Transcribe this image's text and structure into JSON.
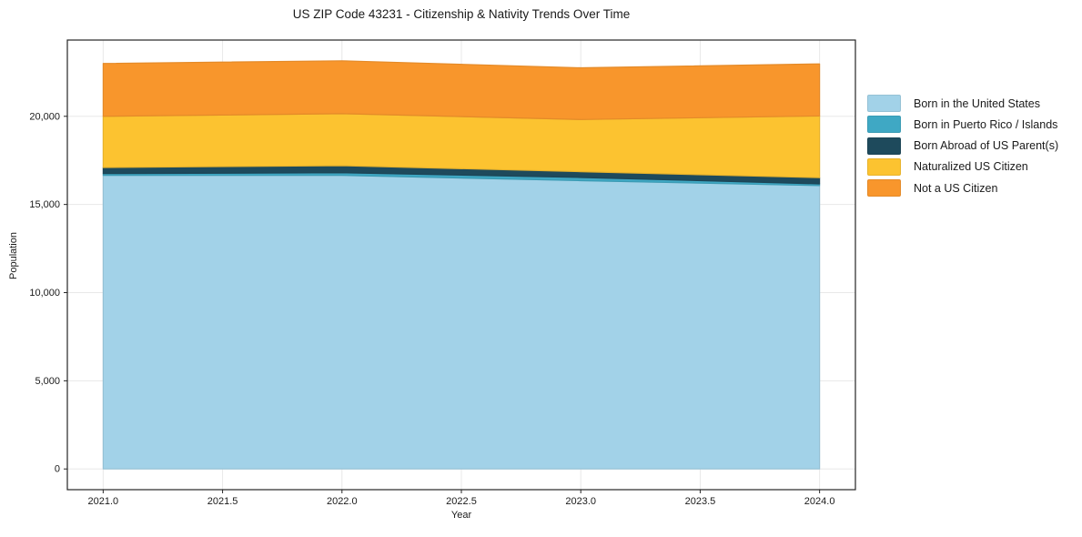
{
  "title": "US ZIP Code 43231 - Citizenship & Nativity Trends Over Time",
  "chart_data": {
    "type": "area",
    "stacked": true,
    "title": "US ZIP Code 43231 - Citizenship & Nativity Trends Over Time",
    "xlabel": "Year",
    "ylabel": "Population",
    "x": [
      2021,
      2022,
      2023,
      2024
    ],
    "series": [
      {
        "name": "Born in the United States",
        "color": "#a2d2e8",
        "values": [
          16650,
          16650,
          16350,
          16070
        ]
      },
      {
        "name": "Born in Puerto Rico / Islands",
        "color": "#3fa8c4",
        "values": [
          100,
          150,
          180,
          100
        ]
      },
      {
        "name": "Born Abroad of US Parent(s)",
        "color": "#1e4a5c",
        "values": [
          350,
          400,
          330,
          350
        ]
      },
      {
        "name": "Naturalized US Citizen",
        "color": "#fcc330",
        "values": [
          2900,
          2950,
          2960,
          3500
        ]
      },
      {
        "name": "Not a US Citizen",
        "color": "#f8962c",
        "values": [
          3000,
          3000,
          2930,
          2950
        ]
      }
    ],
    "stack_totals": [
      23000,
      23150,
      22750,
      22970
    ],
    "x_ticks": [
      2021.0,
      2021.5,
      2022.0,
      2022.5,
      2023.0,
      2023.5,
      2024.0
    ],
    "x_tick_labels": [
      "2021.0",
      "2021.5",
      "2022.0",
      "2022.5",
      "2023.0",
      "2023.5",
      "2024.0"
    ],
    "y_ticks": [
      0,
      5000,
      10000,
      15000,
      20000
    ],
    "y_tick_labels": [
      "0",
      "5,000",
      "10,000",
      "15,000",
      "20,000"
    ],
    "xlim": [
      2020.85,
      2024.15
    ],
    "ylim": [
      -1175,
      24325
    ],
    "grid": true,
    "legend_position": "right-outside"
  },
  "colors": {
    "grid": "#e8e8e8",
    "axis": "#262626",
    "tick_text": "#1a1a1a",
    "background": "#ffffff"
  }
}
